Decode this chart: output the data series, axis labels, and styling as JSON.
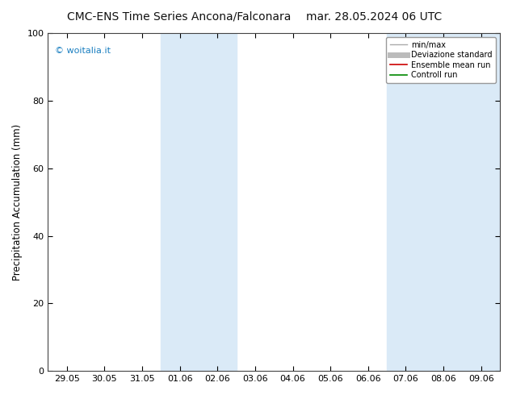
{
  "title_left": "CMC-ENS Time Series Ancona/Falconara",
  "title_right": "mar. 28.05.2024 06 UTC",
  "ylabel": "Precipitation Accumulation (mm)",
  "ylim": [
    0,
    100
  ],
  "yticks": [
    0,
    20,
    40,
    60,
    80,
    100
  ],
  "xtick_labels": [
    "29.05",
    "30.05",
    "31.05",
    "01.06",
    "02.06",
    "03.06",
    "04.06",
    "05.06",
    "06.06",
    "07.06",
    "08.06",
    "09.06"
  ],
  "shaded_regions": [
    {
      "xmin": 3,
      "xmax": 5,
      "color": "#daeaf7"
    },
    {
      "xmin": 9,
      "xmax": 12,
      "color": "#daeaf7"
    }
  ],
  "watermark": "© woitalia.it",
  "watermark_color": "#1a7fc0",
  "legend_entries": [
    {
      "label": "min/max",
      "color": "#aaaaaa",
      "lw": 1.0
    },
    {
      "label": "Deviazione standard",
      "color": "#bbbbbb",
      "lw": 5
    },
    {
      "label": "Ensemble mean run",
      "color": "#cc0000",
      "lw": 1.2
    },
    {
      "label": "Controll run",
      "color": "#008800",
      "lw": 1.2
    }
  ],
  "background_color": "#ffffff",
  "title_fontsize": 10,
  "axis_label_fontsize": 8.5,
  "tick_fontsize": 8
}
